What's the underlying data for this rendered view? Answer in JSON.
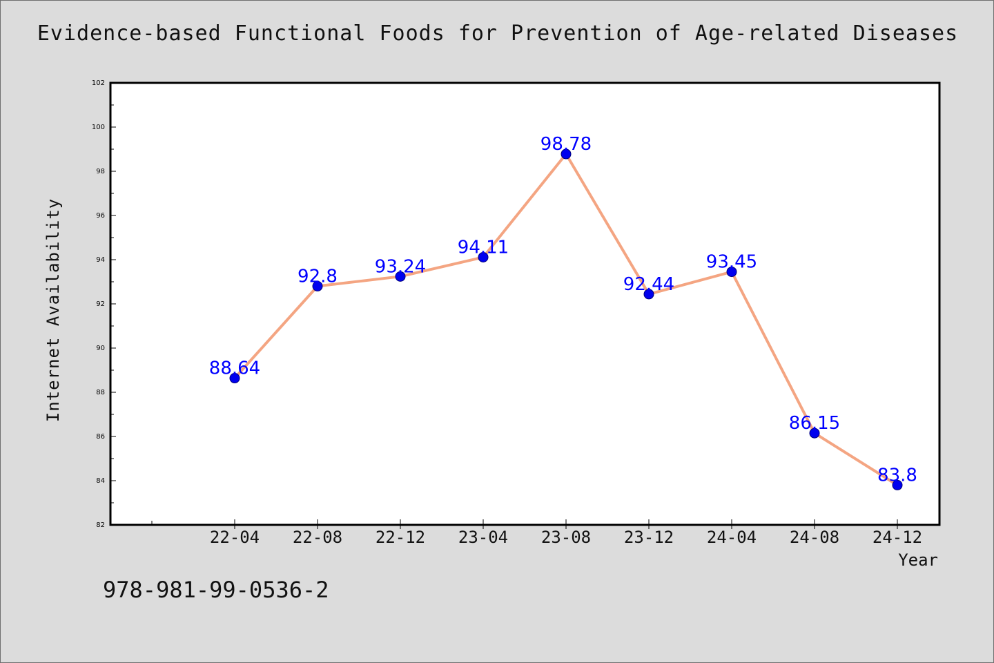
{
  "chart_data": {
    "type": "line",
    "title": "Evidence-based Functional Foods for Prevention of Age-related Diseases",
    "xlabel": "Year",
    "ylabel": "Internet Availability",
    "categories": [
      "22-04",
      "22-08",
      "22-12",
      "23-04",
      "23-08",
      "23-12",
      "24-04",
      "24-08",
      "24-12"
    ],
    "series": [
      {
        "values": [
          88.64,
          92.8,
          93.24,
          94.11,
          98.78,
          92.44,
          93.45,
          86.15,
          83.8
        ],
        "data_labels": [
          "88.64",
          "92.8",
          "93.24",
          "94.11",
          "98.78",
          "92.44",
          "93.45",
          "86.15",
          "83.8"
        ],
        "line_color": "#f4a582",
        "marker_color": "#0000ee",
        "label_color": "#0000ff"
      }
    ],
    "ylim": [
      82,
      102
    ],
    "yticks": [
      "82",
      "84",
      "86",
      "88",
      "90",
      "92",
      "94",
      "96",
      "98",
      "100",
      "102"
    ],
    "grid": false,
    "legend": "none"
  },
  "footer_text": "978-981-99-0536-2",
  "colors": {
    "background": "#dcdcdc",
    "plot_background": "#ffffff",
    "axis": "#000000"
  }
}
